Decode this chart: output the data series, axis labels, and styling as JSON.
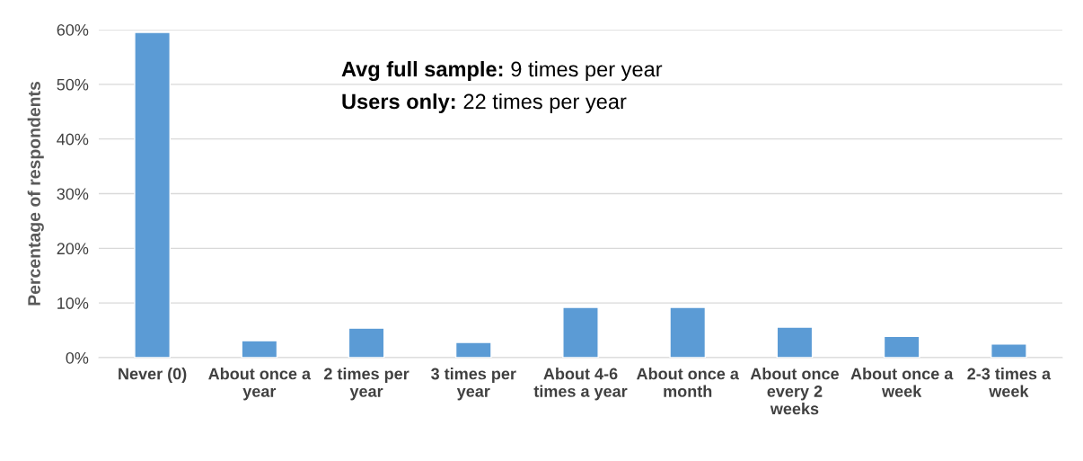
{
  "chart_data": {
    "type": "bar",
    "ylabel": "Percentage of respondents",
    "categories": [
      "Never (0)",
      "About once a year",
      "2 times per year",
      "3 times per year",
      "About 4-6 times a year",
      "About once a month",
      "About once every 2 weeks",
      "About once a week",
      "2-3 times a week"
    ],
    "values": [
      59.5,
      3.1,
      5.4,
      2.8,
      9.2,
      9.2,
      5.6,
      3.9,
      2.5
    ],
    "color": "#5b9bd5",
    "ylim": [
      0,
      60
    ],
    "yticks": [
      {
        "value": 0,
        "label": "0%"
      },
      {
        "value": 10,
        "label": "10%"
      },
      {
        "value": 20,
        "label": "20%"
      },
      {
        "value": 30,
        "label": "30%"
      },
      {
        "value": 40,
        "label": "40%"
      },
      {
        "value": 50,
        "label": "50%"
      },
      {
        "value": 60,
        "label": "60%"
      }
    ],
    "grid": "y",
    "annotations": [
      {
        "text": "Avg full sample: 9 times per year"
      },
      {
        "text": "Users only: 22 times per year"
      }
    ]
  }
}
